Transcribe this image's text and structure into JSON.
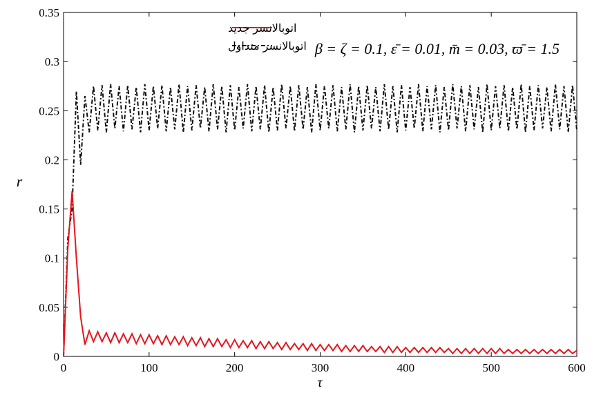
{
  "chart_data": {
    "type": "line",
    "x_label": "τ",
    "y_label": "r",
    "annotation": "β = ζ = 0.1, ε̄ = 0.01, m̄ = 0.03, ϖ̄ = 1.5",
    "x": [
      0,
      5,
      10,
      15,
      20,
      25,
      30,
      35,
      40,
      45,
      50,
      55,
      60,
      65,
      70,
      75,
      80,
      85,
      90,
      95,
      100,
      105,
      110,
      115,
      120,
      125,
      130,
      135,
      140,
      145,
      150,
      155,
      160,
      165,
      170,
      175,
      180,
      185,
      190,
      195,
      200,
      205,
      210,
      215,
      220,
      225,
      230,
      235,
      240,
      245,
      250,
      255,
      260,
      265,
      270,
      275,
      280,
      285,
      290,
      295,
      300,
      305,
      310,
      315,
      320,
      325,
      330,
      335,
      340,
      345,
      350,
      355,
      360,
      365,
      370,
      375,
      380,
      385,
      390,
      395,
      400,
      405,
      410,
      415,
      420,
      425,
      430,
      435,
      440,
      445,
      450,
      455,
      460,
      465,
      470,
      475,
      480,
      485,
      490,
      495,
      500,
      505,
      510,
      515,
      520,
      525,
      530,
      535,
      540,
      545,
      550,
      555,
      560,
      565,
      570,
      575,
      580,
      585,
      590,
      595,
      600
    ],
    "series": [
      {
        "name": "اتوبالانسر جدید",
        "color": "#e8141c",
        "dash": "solid",
        "values": [
          0,
          0.11,
          0.168,
          0.1,
          0.04,
          0.012,
          0.026,
          0.015,
          0.025,
          0.015,
          0.024,
          0.014,
          0.024,
          0.014,
          0.023,
          0.014,
          0.023,
          0.013,
          0.022,
          0.013,
          0.022,
          0.013,
          0.021,
          0.012,
          0.021,
          0.012,
          0.02,
          0.012,
          0.02,
          0.011,
          0.019,
          0.011,
          0.019,
          0.01,
          0.018,
          0.01,
          0.018,
          0.01,
          0.017,
          0.009,
          0.017,
          0.009,
          0.016,
          0.009,
          0.016,
          0.008,
          0.015,
          0.008,
          0.015,
          0.008,
          0.014,
          0.007,
          0.014,
          0.007,
          0.013,
          0.007,
          0.013,
          0.006,
          0.013,
          0.006,
          0.012,
          0.006,
          0.012,
          0.006,
          0.012,
          0.005,
          0.011,
          0.005,
          0.011,
          0.005,
          0.011,
          0.005,
          0.01,
          0.005,
          0.01,
          0.004,
          0.01,
          0.004,
          0.01,
          0.004,
          0.009,
          0.004,
          0.009,
          0.004,
          0.009,
          0.004,
          0.009,
          0.004,
          0.009,
          0.004,
          0.008,
          0.003,
          0.008,
          0.003,
          0.008,
          0.003,
          0.008,
          0.003,
          0.008,
          0.003,
          0.008,
          0.003,
          0.008,
          0.003,
          0.007,
          0.003,
          0.007,
          0.003,
          0.007,
          0.003,
          0.007,
          0.003,
          0.007,
          0.003,
          0.007,
          0.003,
          0.007,
          0.003,
          0.007,
          0.003,
          0.006
        ]
      },
      {
        "name": "اتوبالانسر متداول",
        "color": "#111111",
        "dash": "dashdot",
        "values": [
          0,
          0.12,
          0.15,
          0.27,
          0.195,
          0.265,
          0.228,
          0.275,
          0.23,
          0.276,
          0.228,
          0.277,
          0.232,
          0.275,
          0.229,
          0.276,
          0.231,
          0.274,
          0.228,
          0.277,
          0.23,
          0.275,
          0.232,
          0.276,
          0.229,
          0.274,
          0.231,
          0.277,
          0.228,
          0.275,
          0.23,
          0.276,
          0.232,
          0.274,
          0.229,
          0.277,
          0.231,
          0.275,
          0.228,
          0.276,
          0.23,
          0.274,
          0.232,
          0.277,
          0.229,
          0.275,
          0.231,
          0.276,
          0.228,
          0.274,
          0.23,
          0.277,
          0.232,
          0.275,
          0.229,
          0.276,
          0.231,
          0.274,
          0.228,
          0.277,
          0.23,
          0.275,
          0.232,
          0.276,
          0.229,
          0.274,
          0.231,
          0.277,
          0.228,
          0.275,
          0.23,
          0.276,
          0.232,
          0.274,
          0.229,
          0.277,
          0.231,
          0.275,
          0.228,
          0.276,
          0.23,
          0.274,
          0.232,
          0.277,
          0.229,
          0.275,
          0.231,
          0.276,
          0.228,
          0.274,
          0.23,
          0.277,
          0.232,
          0.275,
          0.229,
          0.276,
          0.231,
          0.274,
          0.228,
          0.277,
          0.23,
          0.275,
          0.232,
          0.276,
          0.229,
          0.274,
          0.231,
          0.277,
          0.228,
          0.275,
          0.23,
          0.276,
          0.232,
          0.274,
          0.229,
          0.277,
          0.231,
          0.275,
          0.228,
          0.276,
          0.23
        ]
      }
    ],
    "xlim": [
      0,
      600
    ],
    "xticks": [
      0,
      100,
      200,
      300,
      400,
      500,
      600
    ],
    "ylim": [
      0,
      0.35
    ],
    "yticks": [
      0,
      0.05,
      0.1,
      0.15,
      0.2,
      0.25,
      0.3,
      0.35
    ],
    "grid": false,
    "legend": "upper left"
  }
}
